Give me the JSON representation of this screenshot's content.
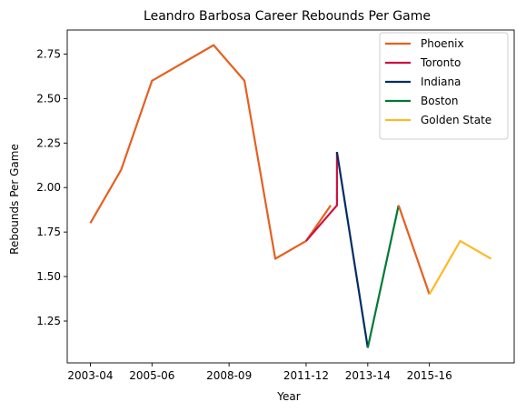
{
  "chart_data": {
    "type": "line",
    "title": "Leandro Barbosa Career Rebounds Per Game",
    "xlabel": "Year",
    "ylabel": "Rebounds Per Game",
    "x_tick_labels": [
      "2003-04",
      "2005-06",
      "2008-09",
      "2011-12",
      "2013-14",
      "2015-16"
    ],
    "x_tick_positions": [
      0,
      2,
      4.5,
      7,
      9,
      11
    ],
    "y_ticks": [
      1.25,
      1.5,
      1.75,
      2.0,
      2.25,
      2.5,
      2.75
    ],
    "y_tick_labels": [
      "1.25",
      "1.50",
      "1.75",
      "2.00",
      "2.25",
      "2.50",
      "2.75"
    ],
    "xlim": [
      -0.75,
      13.75
    ],
    "ylim": [
      1.015,
      2.885
    ],
    "grid": false,
    "legend_position": "top-right",
    "series": [
      {
        "name": "Phoenix",
        "color": "#E56020",
        "points": [
          [
            0,
            1.8
          ],
          [
            1,
            2.1
          ],
          [
            2,
            2.6
          ],
          [
            4,
            2.8
          ],
          [
            5,
            2.6
          ],
          [
            6,
            1.6
          ],
          [
            7,
            1.7
          ],
          [
            7.8,
            1.9
          ]
        ]
      },
      {
        "name": "Toronto",
        "color": "#CE1141",
        "points": [
          [
            7,
            1.7
          ],
          [
            8,
            1.9
          ],
          [
            8,
            2.2
          ]
        ]
      },
      {
        "name": "Indiana",
        "color": "#002D62",
        "points": [
          [
            8,
            2.2
          ],
          [
            9,
            1.1
          ]
        ]
      },
      {
        "name": "Boston",
        "color": "#007A33",
        "points": [
          [
            9,
            1.1
          ],
          [
            10,
            1.9
          ]
        ]
      },
      {
        "name": "Phoenix",
        "color": "#E56020",
        "points": [
          [
            10,
            1.9
          ],
          [
            11,
            1.4
          ]
        ]
      },
      {
        "name": "Golden State",
        "color": "#FDB927",
        "points": [
          [
            11,
            1.4
          ],
          [
            12,
            1.7
          ],
          [
            13,
            1.6
          ]
        ]
      }
    ],
    "legend": [
      {
        "name": "Phoenix",
        "color": "#E56020"
      },
      {
        "name": "Toronto",
        "color": "#CE1141"
      },
      {
        "name": "Indiana",
        "color": "#002D62"
      },
      {
        "name": "Boston",
        "color": "#007A33"
      },
      {
        "name": "Golden State",
        "color": "#FDB927"
      }
    ]
  }
}
